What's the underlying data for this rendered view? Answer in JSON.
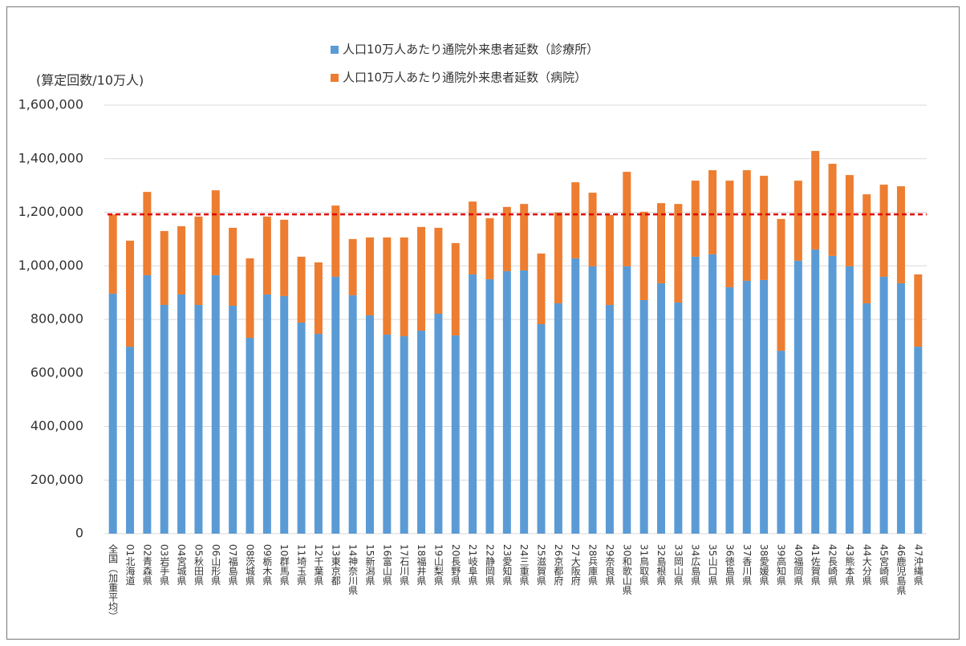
{
  "chart_data": {
    "type": "stacked_bar",
    "y_axis_label": "(算定回数/10万人)",
    "categories": [
      "全国（加重平均）",
      "01北海道",
      "02青森県",
      "03岩手県",
      "04宮城県",
      "05秋田県",
      "06山形県",
      "07福島県",
      "08茨城県",
      "09栃木県",
      "10群馬県",
      "11埼玉県",
      "12千葉県",
      "13東京都",
      "14神奈川県",
      "15新潟県",
      "16富山県",
      "17石川県",
      "18福井県",
      "19山梨県",
      "20長野県",
      "21岐阜県",
      "22静岡県",
      "23愛知県",
      "24三重県",
      "25滋賀県",
      "26京都府",
      "27大阪府",
      "28兵庫県",
      "29奈良県",
      "30和歌山県",
      "31鳥取県",
      "32島根県",
      "33岡山県",
      "34広島県",
      "35山口県",
      "36徳島県",
      "37香川県",
      "38愛媛県",
      "39高知県",
      "40福岡県",
      "41佐賀県",
      "42長崎県",
      "43熊本県",
      "44大分県",
      "45宮崎県",
      "46鹿児島県",
      "47沖縄県"
    ],
    "series": [
      {
        "name": "人口10万人あたり通院外来患者延数（診療所）",
        "color": "#5b9bd5",
        "values": [
          896000,
          698000,
          965000,
          854000,
          893000,
          854000,
          965000,
          851000,
          731000,
          893000,
          887000,
          788000,
          746000,
          959000,
          890000,
          815000,
          743000,
          737000,
          758000,
          821000,
          740000,
          968000,
          950000,
          980000,
          983000,
          782000,
          860000,
          1028000,
          998000,
          854000,
          998000,
          872000,
          935000,
          863000,
          1034000,
          1043000,
          920000,
          944000,
          947000,
          683000,
          1019000,
          1061000,
          1037000,
          998000,
          860000,
          959000,
          935000,
          698000
        ]
      },
      {
        "name": "人口10万人あたり通院外来患者延数（病院）",
        "color": "#ed7d31",
        "values": [
          296000,
          396000,
          311000,
          276000,
          255000,
          330000,
          317000,
          291000,
          297000,
          291000,
          285000,
          246000,
          267000,
          266000,
          210000,
          291000,
          363000,
          369000,
          387000,
          321000,
          345000,
          272000,
          228000,
          240000,
          248000,
          264000,
          339000,
          284000,
          275000,
          336000,
          353000,
          330000,
          299000,
          368000,
          284000,
          314000,
          398000,
          413000,
          389000,
          492000,
          299000,
          368000,
          344000,
          341000,
          407000,
          344000,
          362000,
          270000
        ]
      }
    ],
    "reference_value": 1192000,
    "reference_color": "#e00000",
    "ylim": [
      0,
      1600000
    ],
    "yticks": [
      0,
      {
        "value": 200000,
        "label": "200,000"
      },
      {
        "value": 400000,
        "label": "400,000"
      },
      {
        "value": 600000,
        "label": "600,000"
      },
      {
        "value": 800000,
        "label": "800,000"
      },
      {
        "value": 1000000,
        "label": "1,000,000"
      },
      {
        "value": 1200000,
        "label": "1,200,000"
      },
      {
        "value": 1400000,
        "label": "1,400,000"
      },
      {
        "value": 1600000,
        "label": "1,600,000"
      }
    ],
    "grid": true
  }
}
